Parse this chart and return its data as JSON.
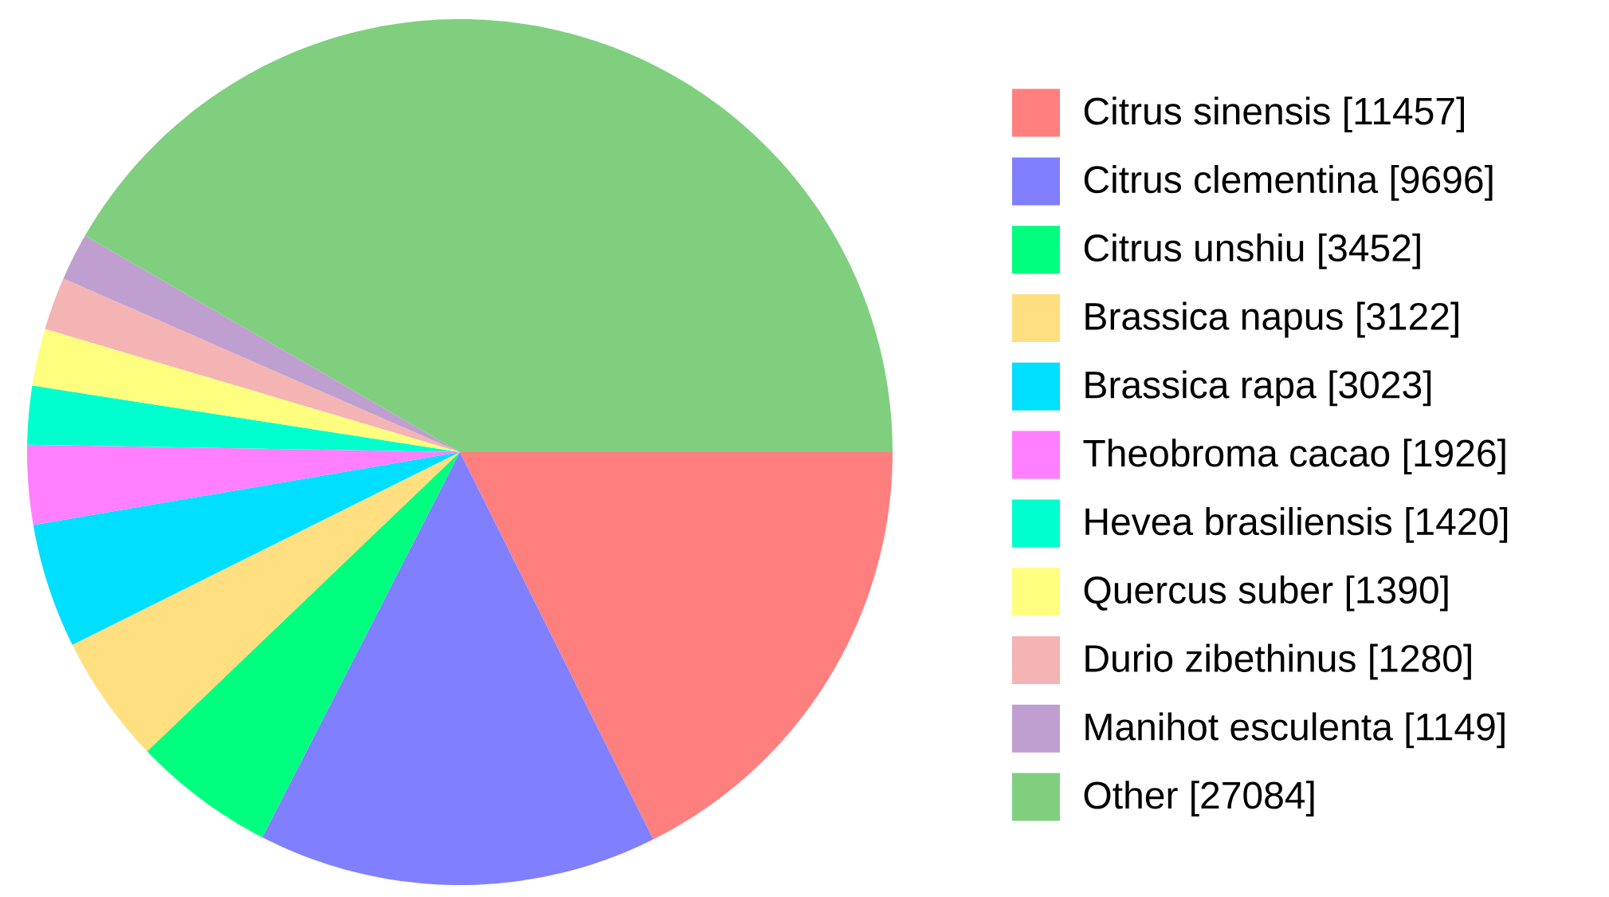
{
  "chart_data": {
    "type": "pie",
    "legend": "right",
    "categories": [
      "Citrus sinensis [11457]",
      "Citrus clementina [9696]",
      "Citrus unshiu [3452]",
      "Brassica napus [3122]",
      "Brassica rapa [3023]",
      "Theobroma cacao [1926]",
      "Hevea brasiliensis [1420]",
      "Quercus suber [1390]",
      "Durio zibethinus [1280]",
      "Manihot esculenta [1149]",
      "Other [27084]"
    ],
    "values": [
      11457,
      9696,
      3452,
      3122,
      3023,
      1926,
      1420,
      1390,
      1280,
      1149,
      27084
    ],
    "colors": [
      "#ff7f7f",
      "#7f7fff",
      "#00ff7f",
      "#ffdf7f",
      "#00dfff",
      "#ff7fff",
      "#00ffcf",
      "#ffff7f",
      "#f4b4b4",
      "#bf9fcf",
      "#7fcf7f"
    ]
  }
}
